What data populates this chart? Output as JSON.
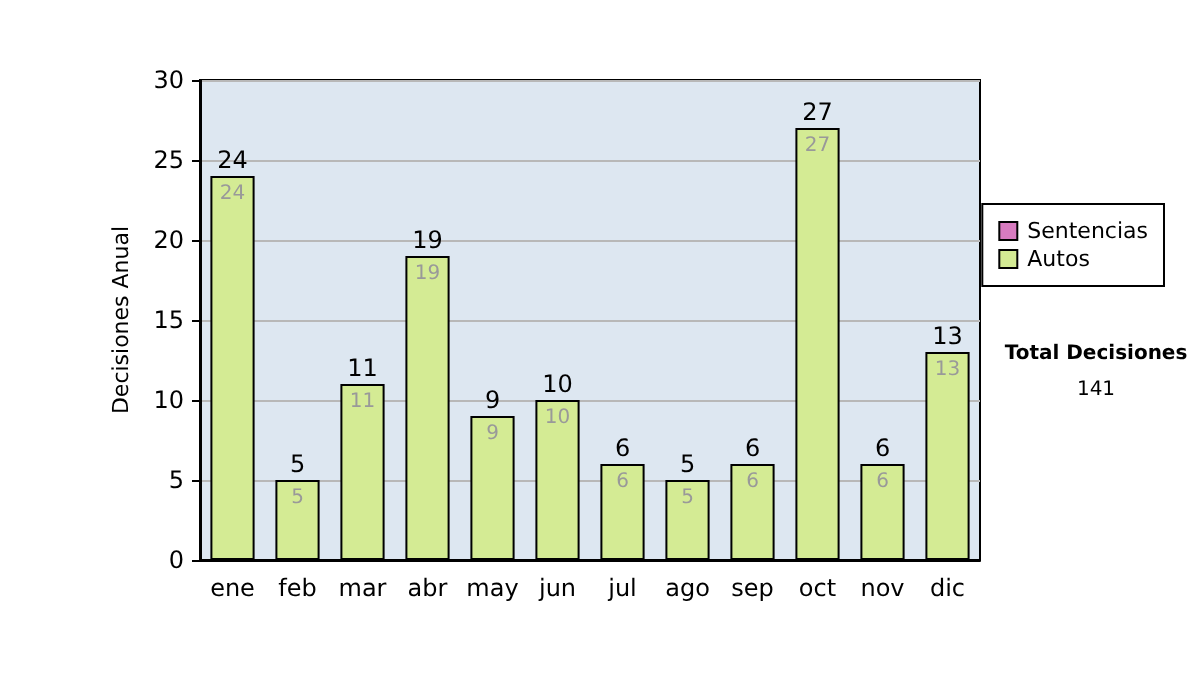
{
  "chart_data": {
    "type": "bar",
    "stacked": true,
    "ylabel": "Decisiones Anual",
    "categories": [
      "ene",
      "feb",
      "mar",
      "abr",
      "may",
      "jun",
      "jul",
      "ago",
      "sep",
      "oct",
      "nov",
      "dic"
    ],
    "series": [
      {
        "name": "Sentencias",
        "color": "#d87bc0",
        "values": [
          0,
          0,
          0,
          0,
          0,
          0,
          0,
          0,
          0,
          0,
          0,
          0
        ]
      },
      {
        "name": "Autos",
        "color": "#d4eb94",
        "values": [
          24,
          5,
          11,
          19,
          9,
          10,
          6,
          5,
          6,
          27,
          6,
          13
        ],
        "value_labels": [
          "24",
          "5",
          "11",
          "19",
          "9",
          "10",
          "6",
          "5",
          "6",
          "27",
          "6",
          "13"
        ]
      }
    ],
    "totals": [
      "24",
      "5",
      "11",
      "19",
      "9",
      "10",
      "6",
      "5",
      "6",
      "27",
      "6",
      "13"
    ],
    "ylim": [
      0,
      30
    ],
    "yticks": [
      0,
      5,
      10,
      15,
      20,
      25,
      30
    ],
    "grid": "y",
    "legend": "right",
    "annotations": [
      "Total Decisiones",
      "141"
    ]
  }
}
